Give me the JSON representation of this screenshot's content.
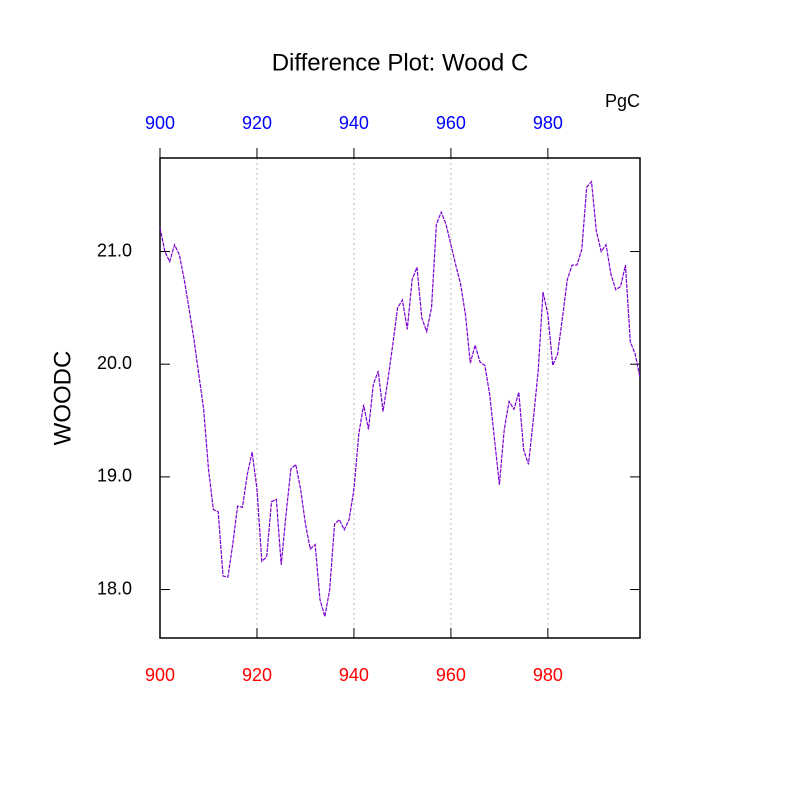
{
  "chart_data": {
    "type": "line",
    "title": "Difference Plot: Wood C",
    "units": "PgC",
    "ylabel": "WOODC",
    "x": [
      900,
      901,
      902,
      903,
      904,
      905,
      906,
      907,
      908,
      909,
      910,
      911,
      912,
      913,
      914,
      915,
      916,
      917,
      918,
      919,
      920,
      921,
      922,
      923,
      924,
      925,
      926,
      927,
      928,
      929,
      930,
      931,
      932,
      933,
      934,
      935,
      936,
      937,
      938,
      939,
      940,
      941,
      942,
      943,
      944,
      945,
      946,
      947,
      948,
      949,
      950,
      951,
      952,
      953,
      954,
      955,
      956,
      957,
      958,
      959,
      960,
      961,
      962,
      963,
      964,
      965,
      966,
      967,
      968,
      969,
      970,
      971,
      972,
      973,
      974,
      975,
      976,
      977,
      978,
      979,
      980,
      981,
      982,
      983,
      984,
      985,
      986,
      987,
      988,
      989,
      990,
      991,
      992,
      993,
      994,
      995,
      996,
      997,
      998,
      999
    ],
    "series": [
      {
        "color": "#7a00d0",
        "values": [
          21.21,
          21.0,
          20.91,
          21.06,
          20.97,
          20.75,
          20.49,
          20.22,
          19.91,
          19.6,
          19.07,
          18.71,
          18.69,
          18.12,
          18.11,
          18.4,
          18.74,
          18.73,
          19.02,
          19.22,
          18.89,
          18.25,
          18.29,
          18.78,
          18.8,
          18.22,
          18.67,
          19.07,
          19.11,
          18.89,
          18.58,
          18.36,
          18.4,
          17.91,
          17.76,
          18.0,
          18.58,
          18.62,
          18.53,
          18.62,
          18.89,
          19.38,
          19.64,
          19.42,
          19.82,
          19.94,
          19.58,
          19.86,
          20.17,
          20.5,
          20.57,
          20.31,
          20.75,
          20.86,
          20.41,
          20.29,
          20.5,
          21.24,
          21.35,
          21.24,
          21.06,
          20.88,
          20.71,
          20.44,
          20.01,
          20.17,
          20.02,
          19.99,
          19.73,
          19.33,
          18.93,
          19.42,
          19.67,
          19.6,
          19.75,
          19.24,
          19.11,
          19.51,
          19.94,
          20.64,
          20.44,
          19.99,
          20.09,
          20.41,
          20.75,
          20.88,
          20.88,
          21.02,
          21.57,
          21.62,
          21.18,
          21.0,
          21.06,
          20.8,
          20.66,
          20.69,
          20.88,
          20.2,
          20.09,
          19.88
        ]
      }
    ],
    "xlim": [
      900,
      999
    ],
    "xticks": [
      900,
      920,
      940,
      960,
      980
    ],
    "ylim": [
      17.57,
      21.83
    ],
    "yticks": [
      {
        "value": 18,
        "label": "18.0"
      },
      {
        "value": 19,
        "label": "19.0"
      },
      {
        "value": 20,
        "label": "20.0"
      },
      {
        "value": 21,
        "label": "21.0"
      }
    ],
    "top_tick_color": "#0000ff",
    "bottom_tick_color": "#ff0000",
    "grid": true
  }
}
